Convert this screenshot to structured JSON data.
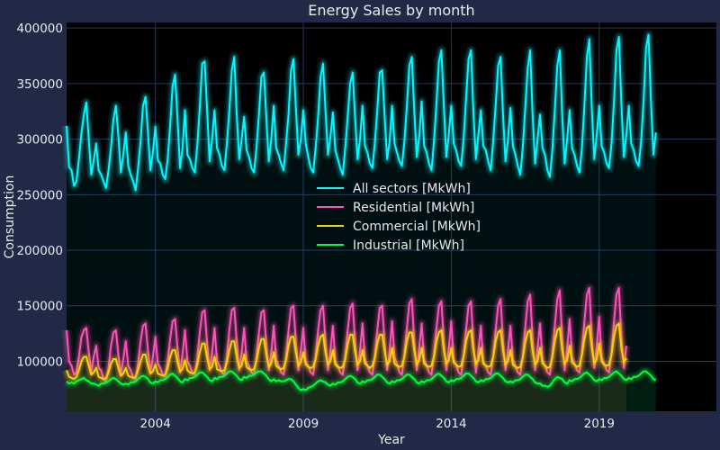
{
  "chart_data": {
    "type": "line",
    "title": "Energy Sales by month",
    "xlabel": "Year",
    "ylabel": "Consumption",
    "xlim": [
      2001.0,
      2022.96
    ],
    "ylim": [
      55000,
      405000
    ],
    "grid": true,
    "legend_position": "center",
    "x_ticks": [
      2004,
      2009,
      2014,
      2019
    ],
    "x_tick_labels": [
      "2004",
      "2009",
      "2014",
      "2019"
    ],
    "y_ticks": [
      100000,
      150000,
      200000,
      250000,
      300000,
      350000,
      400000
    ],
    "y_tick_labels": [
      "100000",
      "150000",
      "200000",
      "250000",
      "300000",
      "350000",
      "400000"
    ],
    "x_start": 2001.0,
    "x_step": 0.08333,
    "series": [
      {
        "name": "All sectors [MkWh]",
        "color": "#08F7FE",
        "values": [
          312000,
          275000,
          272000,
          258000,
          262000,
          282000,
          305000,
          322000,
          333000,
          300000,
          268000,
          281000,
          296000,
          272000,
          268000,
          262000,
          256000,
          272000,
          292000,
          318000,
          330000,
          303000,
          270000,
          286000,
          306000,
          276000,
          268000,
          262000,
          254000,
          274000,
          298000,
          330000,
          338000,
          306000,
          272000,
          288000,
          311000,
          281000,
          278000,
          268000,
          264000,
          282000,
          312000,
          348000,
          358000,
          318000,
          274000,
          292000,
          326000,
          286000,
          282000,
          274000,
          270000,
          294000,
          328000,
          368000,
          370000,
          326000,
          280000,
          300000,
          326000,
          292000,
          286000,
          276000,
          272000,
          296000,
          326000,
          362000,
          374000,
          322000,
          282000,
          300000,
          320000,
          290000,
          284000,
          274000,
          270000,
          292000,
          322000,
          356000,
          360000,
          320000,
          280000,
          300000,
          330000,
          292000,
          286000,
          278000,
          272000,
          296000,
          322000,
          362000,
          372000,
          328000,
          286000,
          300000,
          326000,
          296000,
          284000,
          274000,
          270000,
          292000,
          320000,
          356000,
          368000,
          326000,
          286000,
          302000,
          324000,
          290000,
          282000,
          274000,
          268000,
          292000,
          320000,
          350000,
          360000,
          320000,
          282000,
          300000,
          330000,
          294000,
          288000,
          278000,
          274000,
          296000,
          326000,
          360000,
          362000,
          320000,
          282000,
          298000,
          330000,
          296000,
          288000,
          280000,
          276000,
          298000,
          330000,
          366000,
          374000,
          326000,
          284000,
          302000,
          334000,
          294000,
          288000,
          278000,
          272000,
          298000,
          332000,
          370000,
          380000,
          330000,
          284000,
          304000,
          330000,
          296000,
          290000,
          280000,
          276000,
          300000,
          336000,
          372000,
          380000,
          324000,
          282000,
          304000,
          326000,
          294000,
          290000,
          280000,
          272000,
          298000,
          330000,
          366000,
          374000,
          322000,
          280000,
          300000,
          328000,
          294000,
          286000,
          276000,
          268000,
          292000,
          328000,
          364000,
          380000,
          322000,
          278000,
          300000,
          322000,
          292000,
          286000,
          272000,
          266000,
          290000,
          326000,
          366000,
          380000,
          322000,
          278000,
          300000,
          326000,
          292000,
          286000,
          276000,
          270000,
          292000,
          330000,
          374000,
          390000,
          328000,
          282000,
          304000,
          330000,
          294000,
          288000,
          278000,
          274000,
          296000,
          334000,
          380000,
          392000,
          332000,
          284000,
          304000,
          330000,
          296000,
          290000,
          280000,
          276000,
          298000,
          334000,
          382000,
          394000,
          334000,
          286000,
          306000
        ]
      },
      {
        "name": "Residential [MkWh]",
        "color": "#FE53BB",
        "values": [
          128000,
          100000,
          96000,
          88000,
          90000,
          104000,
          122000,
          128000,
          130000,
          108000,
          90000,
          104000,
          114000,
          94000,
          92000,
          84000,
          82000,
          94000,
          114000,
          126000,
          128000,
          106000,
          88000,
          102000,
          118000,
          96000,
          92000,
          86000,
          84000,
          98000,
          118000,
          132000,
          134000,
          110000,
          90000,
          104000,
          122000,
          98000,
          94000,
          88000,
          86000,
          100000,
          120000,
          136000,
          138000,
          112000,
          90000,
          106000,
          128000,
          100000,
          96000,
          90000,
          88000,
          102000,
          126000,
          144000,
          146000,
          116000,
          92000,
          108000,
          130000,
          100000,
          96000,
          90000,
          88000,
          104000,
          128000,
          146000,
          148000,
          118000,
          92000,
          108000,
          130000,
          100000,
          96000,
          90000,
          88000,
          104000,
          126000,
          144000,
          146000,
          116000,
          92000,
          108000,
          132000,
          102000,
          96000,
          90000,
          88000,
          104000,
          128000,
          148000,
          150000,
          118000,
          92000,
          110000,
          130000,
          100000,
          96000,
          90000,
          88000,
          104000,
          128000,
          146000,
          150000,
          118000,
          92000,
          110000,
          132000,
          100000,
          96000,
          90000,
          88000,
          104000,
          128000,
          148000,
          152000,
          118000,
          92000,
          110000,
          134000,
          102000,
          96000,
          90000,
          88000,
          104000,
          128000,
          148000,
          150000,
          116000,
          92000,
          110000,
          136000,
          104000,
          98000,
          90000,
          88000,
          106000,
          130000,
          152000,
          156000,
          118000,
          92000,
          112000,
          134000,
          102000,
          96000,
          90000,
          88000,
          106000,
          130000,
          150000,
          154000,
          118000,
          92000,
          112000,
          136000,
          102000,
          96000,
          90000,
          88000,
          104000,
          128000,
          150000,
          154000,
          116000,
          90000,
          110000,
          132000,
          100000,
          96000,
          90000,
          88000,
          104000,
          128000,
          150000,
          156000,
          118000,
          92000,
          110000,
          132000,
          102000,
          96000,
          90000,
          88000,
          104000,
          130000,
          154000,
          160000,
          120000,
          92000,
          112000,
          134000,
          102000,
          96000,
          90000,
          88000,
          106000,
          132000,
          156000,
          164000,
          120000,
          92000,
          112000,
          138000,
          104000,
          98000,
          92000,
          90000,
          108000,
          136000,
          160000,
          166000,
          122000,
          94000,
          114000,
          140000,
          104000,
          98000,
          92000,
          90000,
          108000,
          136000,
          160000,
          166000,
          122000,
          94000,
          114000
        ]
      },
      {
        "name": "Commercial [MkWh]",
        "color": "#F5D300",
        "values": [
          92000,
          86000,
          85000,
          84000,
          86000,
          92000,
          100000,
          104000,
          104000,
          96000,
          88000,
          90000,
          94000,
          86000,
          85000,
          84000,
          85000,
          90000,
          98000,
          102000,
          102000,
          94000,
          87000,
          89000,
          94000,
          87000,
          86000,
          85000,
          86000,
          92000,
          100000,
          106000,
          106000,
          96000,
          89000,
          91000,
          97000,
          89000,
          88000,
          87000,
          88000,
          94000,
          104000,
          110000,
          110000,
          99000,
          91000,
          93000,
          101000,
          92000,
          90000,
          89000,
          90000,
          97000,
          108000,
          116000,
          116000,
          103000,
          93000,
          95000,
          104000,
          93000,
          92000,
          91000,
          92000,
          99000,
          110000,
          118000,
          118000,
          104000,
          94000,
          96000,
          106000,
          95000,
          93000,
          92000,
          93000,
          100000,
          112000,
          120000,
          120000,
          106000,
          95000,
          98000,
          108000,
          96000,
          94000,
          93000,
          94000,
          101000,
          114000,
          122000,
          122000,
          108000,
          96000,
          99000,
          108000,
          97000,
          95000,
          94000,
          95000,
          102000,
          114000,
          122000,
          124000,
          108000,
          97000,
          100000,
          110000,
          97000,
          95000,
          94000,
          95000,
          102000,
          115000,
          124000,
          124000,
          109000,
          97000,
          100000,
          110000,
          98000,
          96000,
          94000,
          96000,
          103000,
          116000,
          124000,
          124000,
          109000,
          97000,
          100000,
          112000,
          98000,
          96000,
          95000,
          96000,
          104000,
          118000,
          126000,
          126000,
          110000,
          97000,
          101000,
          112000,
          98000,
          96000,
          95000,
          96000,
          104000,
          118000,
          126000,
          128000,
          110000,
          98000,
          101000,
          112000,
          99000,
          97000,
          95000,
          96000,
          104000,
          118000,
          126000,
          128000,
          110000,
          98000,
          101000,
          112000,
          98000,
          96000,
          95000,
          96000,
          104000,
          118000,
          126000,
          128000,
          110000,
          97000,
          100000,
          110000,
          97000,
          95000,
          94000,
          95000,
          103000,
          117000,
          126000,
          128000,
          109000,
          97000,
          100000,
          112000,
          98000,
          96000,
          94000,
          95000,
          104000,
          118000,
          128000,
          130000,
          110000,
          98000,
          101000,
          114000,
          99000,
          97000,
          95000,
          96000,
          106000,
          120000,
          130000,
          132000,
          112000,
          98000,
          102000,
          116000,
          100000,
          97000,
          96000,
          97000,
          106000,
          122000,
          132000,
          134000,
          112000,
          99000,
          103000
        ]
      },
      {
        "name": "Industrial [MkWh]",
        "color": "#00ff41",
        "values": [
          82000,
          80000,
          81000,
          80000,
          82000,
          83000,
          84000,
          85000,
          83000,
          82000,
          80000,
          80000,
          79000,
          78000,
          80000,
          80000,
          81000,
          82000,
          84000,
          85000,
          84000,
          82000,
          80000,
          79000,
          80000,
          79000,
          81000,
          81000,
          82000,
          84000,
          86000,
          87000,
          86000,
          84000,
          81000,
          80000,
          82000,
          81000,
          83000,
          83000,
          84000,
          86000,
          88000,
          89000,
          87000,
          85000,
          82000,
          81000,
          84000,
          83000,
          85000,
          85000,
          86000,
          88000,
          90000,
          90000,
          88000,
          86000,
          83000,
          82000,
          85000,
          84000,
          86000,
          86000,
          87000,
          89000,
          91000,
          91000,
          89000,
          87000,
          84000,
          83000,
          86000,
          85000,
          87000,
          87000,
          88000,
          90000,
          91000,
          91000,
          89000,
          87000,
          84000,
          82000,
          84000,
          82000,
          83000,
          82000,
          82000,
          83000,
          84000,
          84000,
          82000,
          79000,
          76000,
          74000,
          75000,
          74000,
          76000,
          77000,
          78000,
          80000,
          82000,
          83000,
          82000,
          81000,
          79000,
          78000,
          80000,
          79000,
          81000,
          81000,
          82000,
          84000,
          86000,
          87000,
          86000,
          84000,
          81000,
          80000,
          82000,
          81000,
          83000,
          83000,
          84000,
          86000,
          88000,
          88000,
          86000,
          84000,
          81000,
          80000,
          82000,
          81000,
          83000,
          83000,
          84000,
          86000,
          88000,
          88000,
          86000,
          84000,
          81000,
          80000,
          82000,
          81000,
          83000,
          83000,
          84000,
          86000,
          88000,
          89000,
          87000,
          85000,
          82000,
          81000,
          83000,
          82000,
          84000,
          84000,
          85000,
          87000,
          89000,
          89000,
          87000,
          85000,
          82000,
          81000,
          83000,
          82000,
          84000,
          84000,
          85000,
          87000,
          89000,
          89000,
          87000,
          85000,
          82000,
          81000,
          82000,
          81000,
          83000,
          83000,
          84000,
          86000,
          88000,
          88000,
          86000,
          84000,
          81000,
          80000,
          80000,
          78000,
          78000,
          77000,
          78000,
          81000,
          84000,
          86000,
          85000,
          84000,
          81000,
          80000,
          83000,
          82000,
          84000,
          84000,
          85000,
          87000,
          89000,
          90000,
          88000,
          86000,
          83000,
          82000,
          84000,
          83000,
          85000,
          85000,
          86000,
          88000,
          90000,
          91000,
          89000,
          87000,
          84000,
          83000,
          85000,
          84000,
          86000,
          86000,
          87000,
          89000,
          91000,
          91000,
          89000,
          87000,
          84000,
          83000
        ]
      }
    ]
  }
}
